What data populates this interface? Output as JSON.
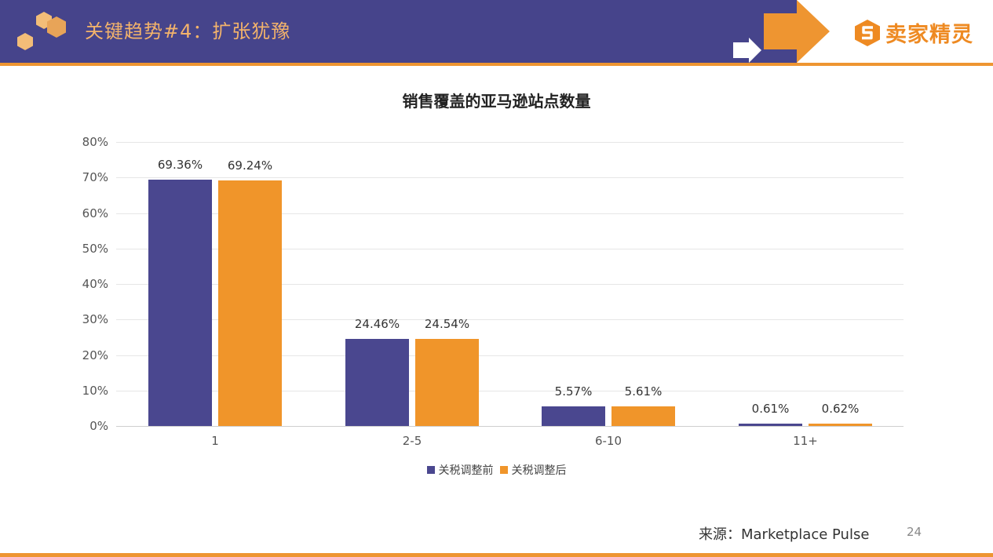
{
  "header": {
    "title": "关键趋势#4：扩张犹豫",
    "logo_text": "卖家精灵",
    "logo_icon": "s-hexagon-icon",
    "colors": {
      "band": "#46448b",
      "accent": "#ee9531",
      "title": "#f3b36b"
    }
  },
  "chart_data": {
    "type": "bar",
    "title": "销售覆盖的亚马逊站点数量",
    "xlabel": "",
    "ylabel": "",
    "categories": [
      "1",
      "2-5",
      "6-10",
      "11+"
    ],
    "series": [
      {
        "name": "关税调整前",
        "color": "#4a478f",
        "values": [
          69.36,
          24.46,
          5.57,
          0.61
        ],
        "labels": [
          "69.36%",
          "24.46%",
          "5.57%",
          "0.61%"
        ]
      },
      {
        "name": "关税调整后",
        "color": "#f0952a",
        "values": [
          69.24,
          24.54,
          5.61,
          0.62
        ],
        "labels": [
          "69.24%",
          "24.54%",
          "5.61%",
          "0.62%"
        ]
      }
    ],
    "yticks": [
      "0%",
      "10%",
      "20%",
      "30%",
      "40%",
      "50%",
      "60%",
      "70%",
      "80%"
    ],
    "ylim": [
      0,
      80
    ],
    "grid": true,
    "legend_position": "bottom"
  },
  "footer": {
    "source": "来源：Marketplace Pulse",
    "page_number": "24"
  }
}
